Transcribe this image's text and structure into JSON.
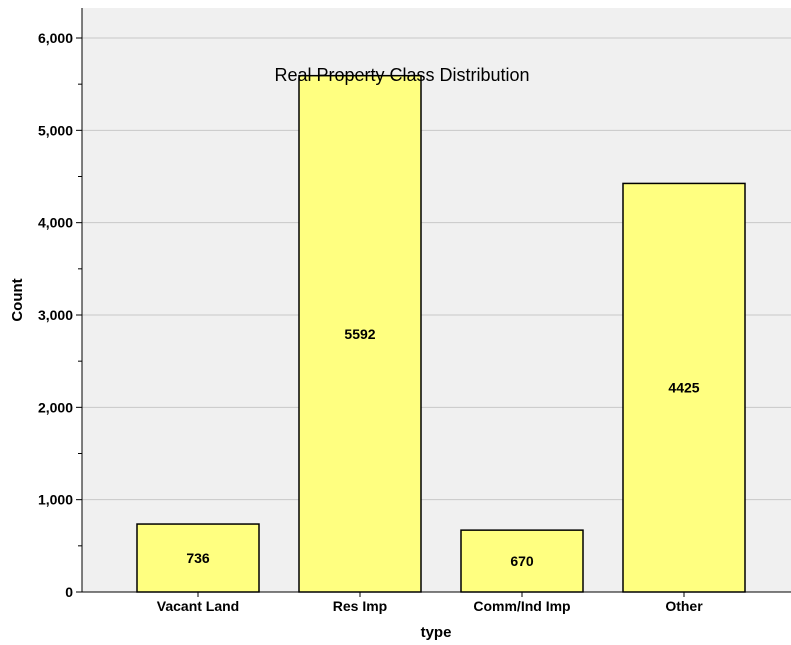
{
  "chart_data": {
    "type": "bar",
    "title": "Real Property Class Distribution",
    "xlabel": "type",
    "ylabel": "Count",
    "categories": [
      "Vacant Land",
      "Res Imp",
      "Comm/Ind Imp",
      "Other"
    ],
    "values": [
      736,
      5592,
      670,
      4425
    ],
    "data_labels": [
      "736",
      "5592",
      "670",
      "4425"
    ],
    "ylim": [
      0,
      6000
    ],
    "yticks": [
      0,
      1000,
      2000,
      3000,
      4000,
      5000,
      6000
    ],
    "ytick_labels": [
      "0",
      "1,000",
      "2,000",
      "3,000",
      "4,000",
      "5,000",
      "6,000"
    ],
    "grid": true,
    "legend": "none",
    "colors": {
      "plot_background": "#f0f0f0",
      "bar_fill": "#ffff80",
      "bar_stroke": "#000000",
      "grid": "#c8c8c8"
    }
  }
}
